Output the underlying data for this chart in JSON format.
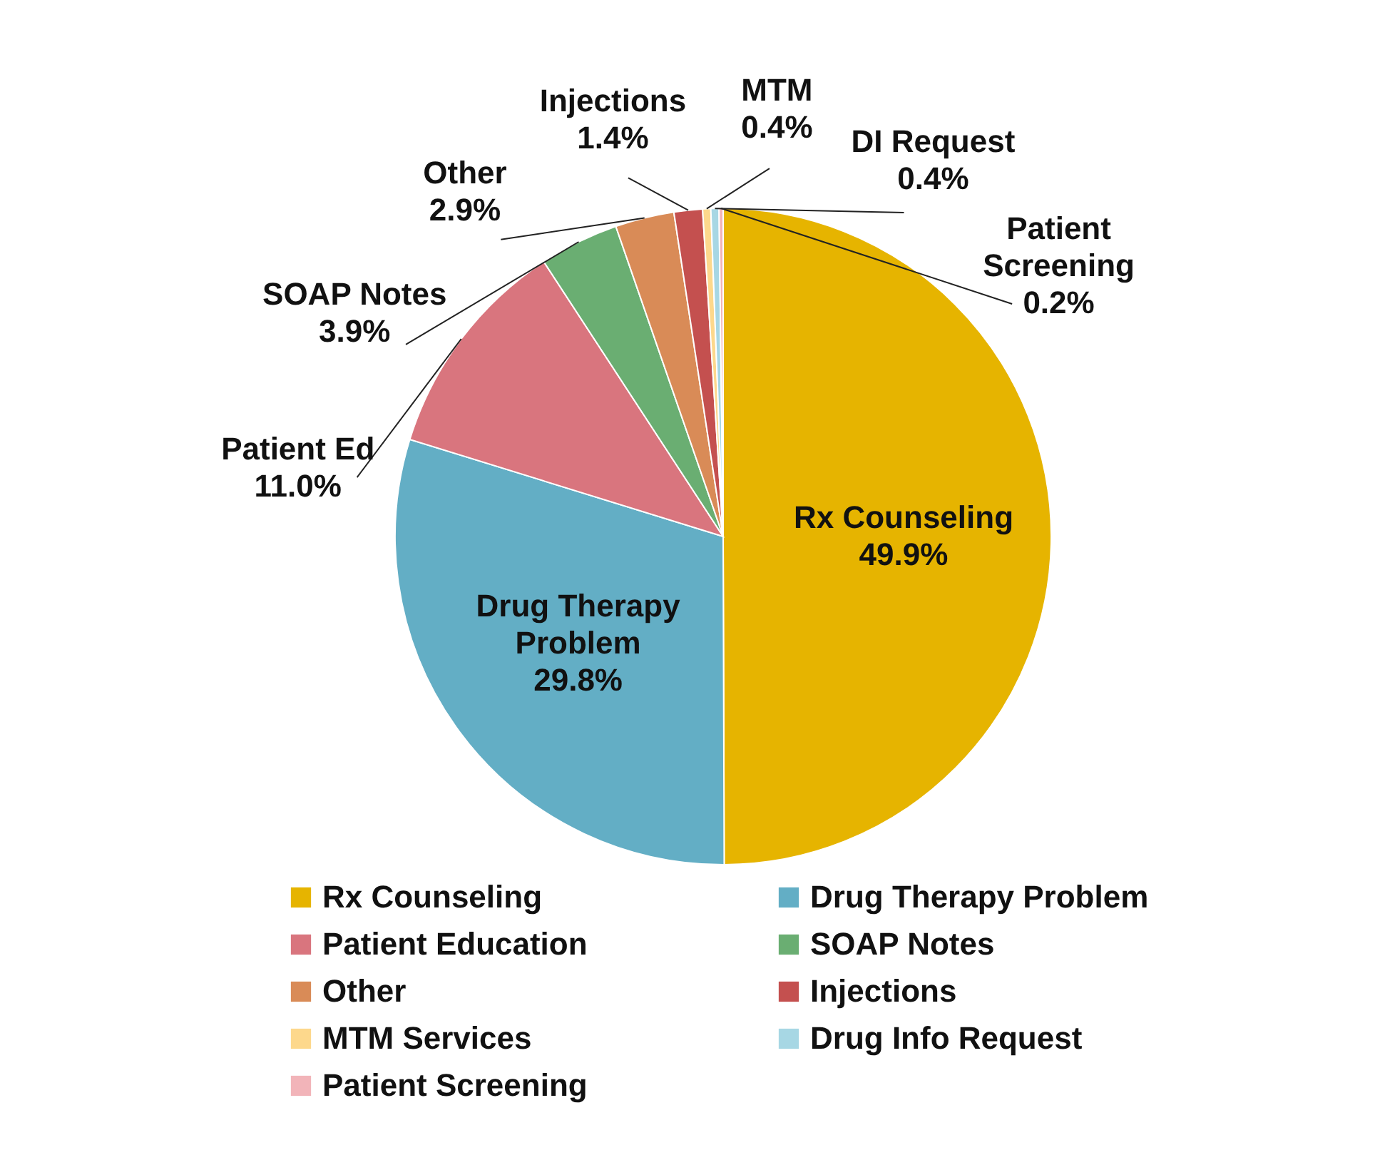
{
  "chart_data": {
    "type": "pie",
    "categories": [
      "Rx Counseling",
      "Drug Therapy Problem",
      "Patient Education",
      "SOAP Notes",
      "Other",
      "Injections",
      "MTM Services",
      "Drug Info Request",
      "Patient Screening"
    ],
    "values": [
      49.9,
      29.8,
      11.0,
      3.9,
      2.9,
      1.4,
      0.4,
      0.4,
      0.2
    ],
    "colors": [
      "#e6b400",
      "#63aec5",
      "#d9757e",
      "#6aae72",
      "#d98b57",
      "#c4504f",
      "#fdd88c",
      "#a7d7e4",
      "#f2b4b9"
    ],
    "value_labels": [
      "Rx Counseling\n49.9%",
      "Drug Therapy\nProblem\n29.8%",
      "Patient Ed\n11.0%",
      "SOAP Notes\n3.9%",
      "Other\n2.9%",
      "Injections\n1.4%",
      "MTM\n0.4%",
      "DI Request\n0.4%",
      "Patient\nScreening\n0.2%"
    ],
    "legend": "bottom"
  }
}
